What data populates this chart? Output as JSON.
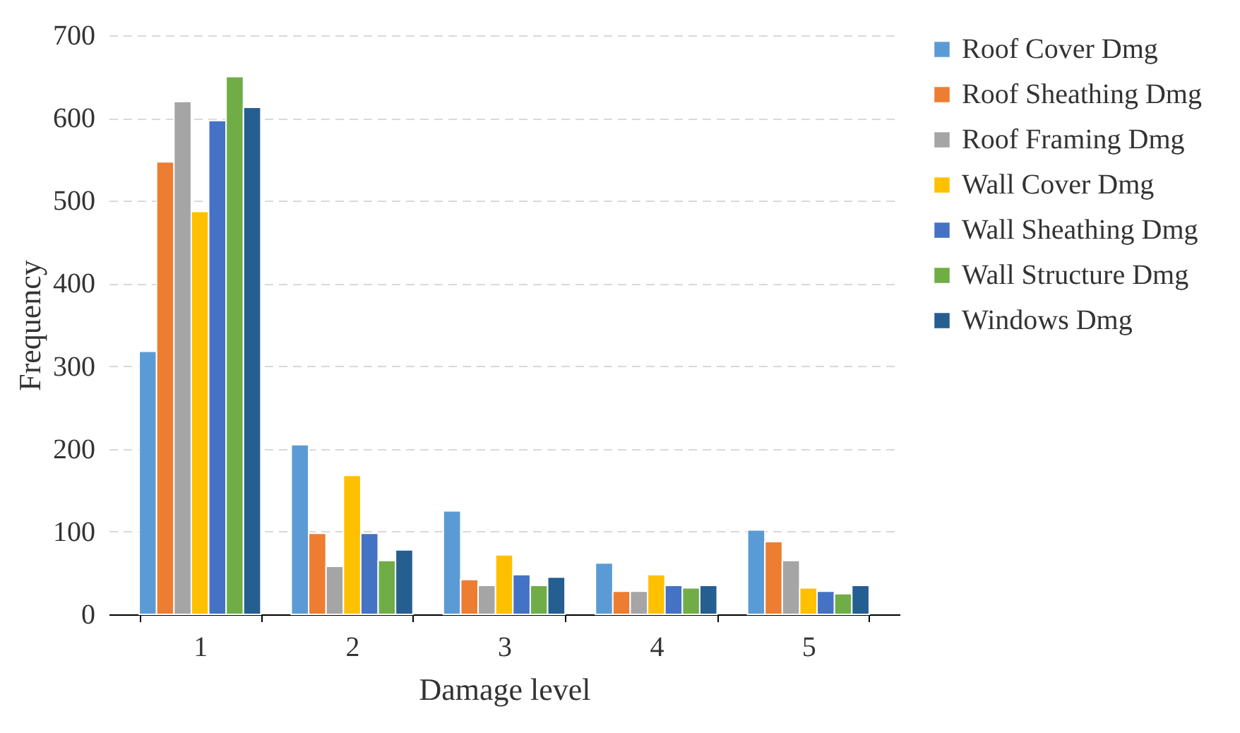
{
  "chart_data": {
    "type": "bar",
    "xlabel": "Damage level",
    "ylabel": "Frequency",
    "categories": [
      "1",
      "2",
      "3",
      "4",
      "5"
    ],
    "ylim": [
      0,
      700
    ],
    "yticks": [
      0,
      100,
      200,
      300,
      400,
      500,
      600,
      700
    ],
    "grid": "y",
    "legend": "right",
    "series": [
      {
        "name": "Roof Cover Dmg",
        "color": "#5b9bd5",
        "values": [
          318,
          205,
          125,
          62,
          102
        ]
      },
      {
        "name": "Roof Sheathing Dmg",
        "color": "#ed7d31",
        "values": [
          547,
          98,
          42,
          28,
          88
        ]
      },
      {
        "name": "Roof Framing Dmg",
        "color": "#a5a5a5",
        "values": [
          620,
          58,
          35,
          28,
          65
        ]
      },
      {
        "name": "Wall Cover Dmg",
        "color": "#ffc000",
        "values": [
          487,
          168,
          72,
          48,
          32
        ]
      },
      {
        "name": "Wall Sheathing Dmg",
        "color": "#4472c4",
        "values": [
          597,
          98,
          48,
          35,
          28
        ]
      },
      {
        "name": "Wall Structure Dmg",
        "color": "#70ad47",
        "values": [
          650,
          65,
          35,
          32,
          25
        ]
      },
      {
        "name": "Windows Dmg",
        "color": "#255e91",
        "values": [
          613,
          78,
          45,
          35,
          35
        ]
      }
    ]
  }
}
